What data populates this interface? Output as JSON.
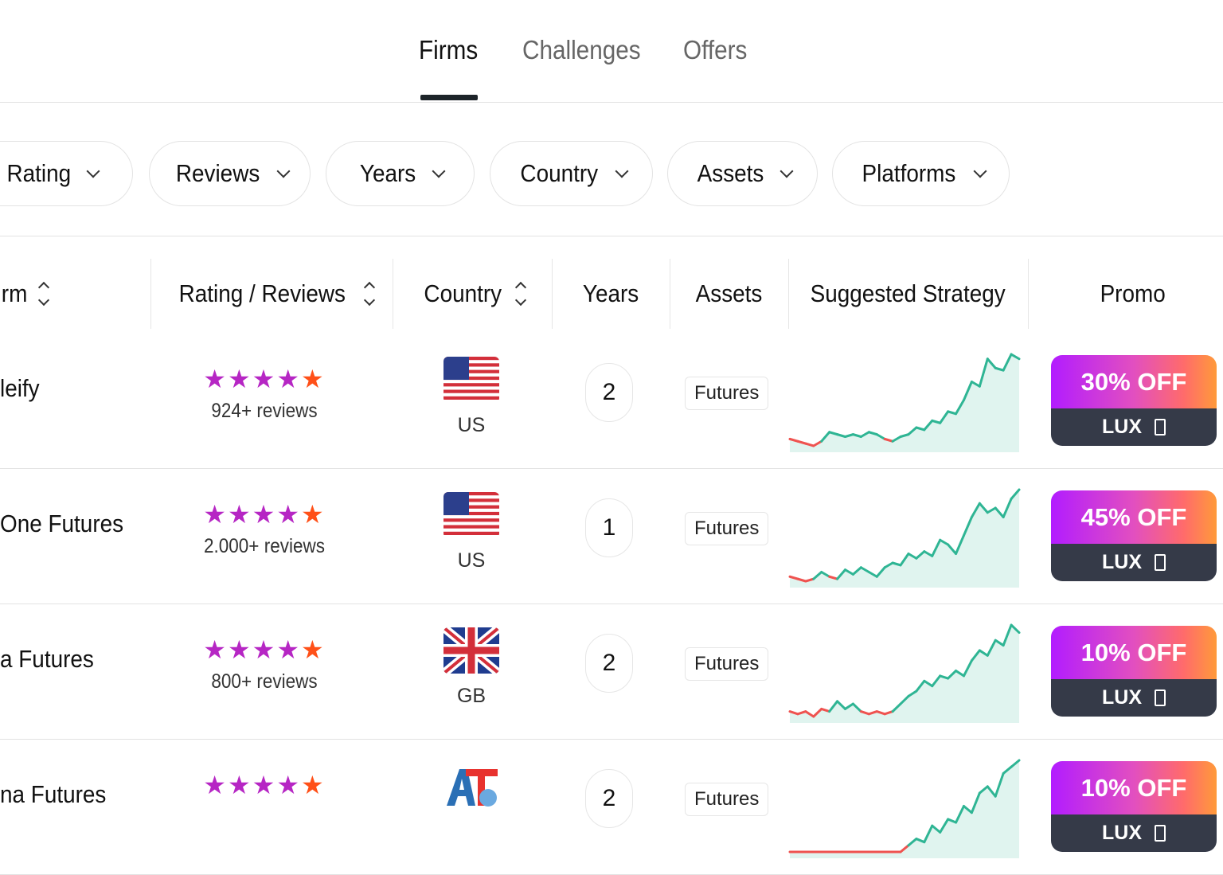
{
  "tabs": [
    {
      "label": "Firms",
      "active": true
    },
    {
      "label": "Challenges"
    },
    {
      "label": "Offers"
    }
  ],
  "filters": [
    "Rating",
    "Reviews",
    "Years",
    "Country",
    "Assets",
    "Platforms"
  ],
  "columns": {
    "firm": "rm",
    "rating": "Rating / Reviews",
    "country": "Country",
    "years": "Years",
    "assets": "Assets",
    "strategy": "Suggested Strategy",
    "promo": "Promo"
  },
  "colors": {
    "star": "#b626c4",
    "star_last": "#ff5018",
    "spark_up": "#2fb594",
    "spark_down": "#ef5350",
    "promo_dark": "#353a48"
  },
  "rows": [
    {
      "firm": "leify",
      "reviews": "924+ reviews",
      "country": "US",
      "flag": "us",
      "years": "2",
      "asset": "Futures",
      "promo": "30% OFF",
      "code": "LUX",
      "strategy": [
        3,
        2,
        1,
        0,
        2,
        6,
        5,
        4,
        5,
        4,
        6,
        5,
        3,
        2,
        4,
        5,
        8,
        7,
        11,
        10,
        15,
        14,
        20,
        28,
        26,
        38,
        34,
        33,
        40,
        38
      ]
    },
    {
      "firm": "One Futures",
      "reviews": "2.000+ reviews",
      "country": "US",
      "flag": "us",
      "years": "1",
      "asset": "Futures",
      "promo": "45% OFF",
      "code": "LUX",
      "strategy": [
        2,
        1,
        0,
        1,
        4,
        2,
        1,
        5,
        3,
        6,
        4,
        2,
        6,
        8,
        7,
        12,
        10,
        13,
        11,
        18,
        16,
        12,
        20,
        28,
        34,
        30,
        32,
        28,
        36,
        40
      ]
    },
    {
      "firm": "a Futures",
      "reviews": "800+ reviews",
      "country": "GB",
      "flag": "gb",
      "years": "2",
      "asset": "Futures",
      "promo": "10% OFF",
      "code": "LUX",
      "strategy": [
        2,
        1,
        2,
        0,
        3,
        2,
        6,
        3,
        5,
        2,
        1,
        2,
        1,
        2,
        5,
        8,
        10,
        14,
        12,
        16,
        15,
        18,
        16,
        22,
        26,
        24,
        30,
        28,
        36,
        33
      ]
    },
    {
      "firm": "na Futures",
      "reviews": "",
      "country": "",
      "flag": "logo",
      "years": "2",
      "asset": "Futures",
      "promo": "10% OFF",
      "code": "LUX",
      "strategy": [
        0,
        0,
        0,
        0,
        0,
        0,
        0,
        0,
        0,
        0,
        0,
        0,
        0,
        0,
        0,
        2,
        4,
        3,
        8,
        6,
        10,
        9,
        14,
        12,
        18,
        20,
        17,
        24,
        26,
        28
      ]
    }
  ]
}
